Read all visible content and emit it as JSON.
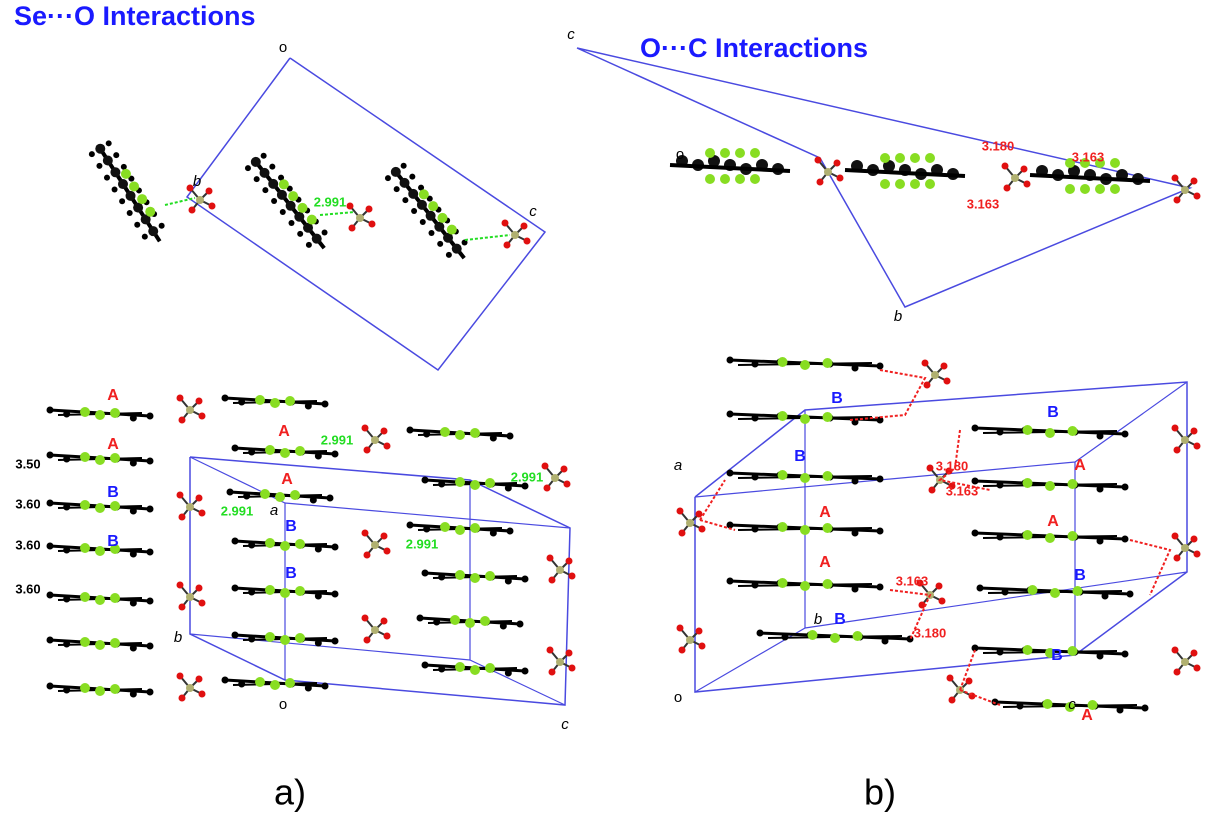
{
  "panels": [
    {
      "title": "Se···O Interactions",
      "caption": "a)",
      "labels": [
        "o",
        "b",
        "2.991",
        "c",
        "A",
        "A",
        "B",
        "B",
        "A",
        "A",
        "B",
        "B",
        "2.991",
        "2.991",
        "2.991",
        "2.991",
        "3.50",
        "3.60",
        "3.60",
        "3.60",
        "a",
        "b",
        "o",
        "c"
      ]
    },
    {
      "title": "O···C Interactions",
      "caption": "b)",
      "labels": [
        "c",
        "o",
        "3.180",
        "3.163",
        "3.163",
        "b",
        "B",
        "B",
        "B",
        "A",
        "A",
        "A",
        "A",
        "B",
        "B",
        "B",
        "A",
        "3.180",
        "3.163",
        "3.163",
        "3.180",
        "a",
        "b",
        "c",
        "o"
      ]
    }
  ]
}
